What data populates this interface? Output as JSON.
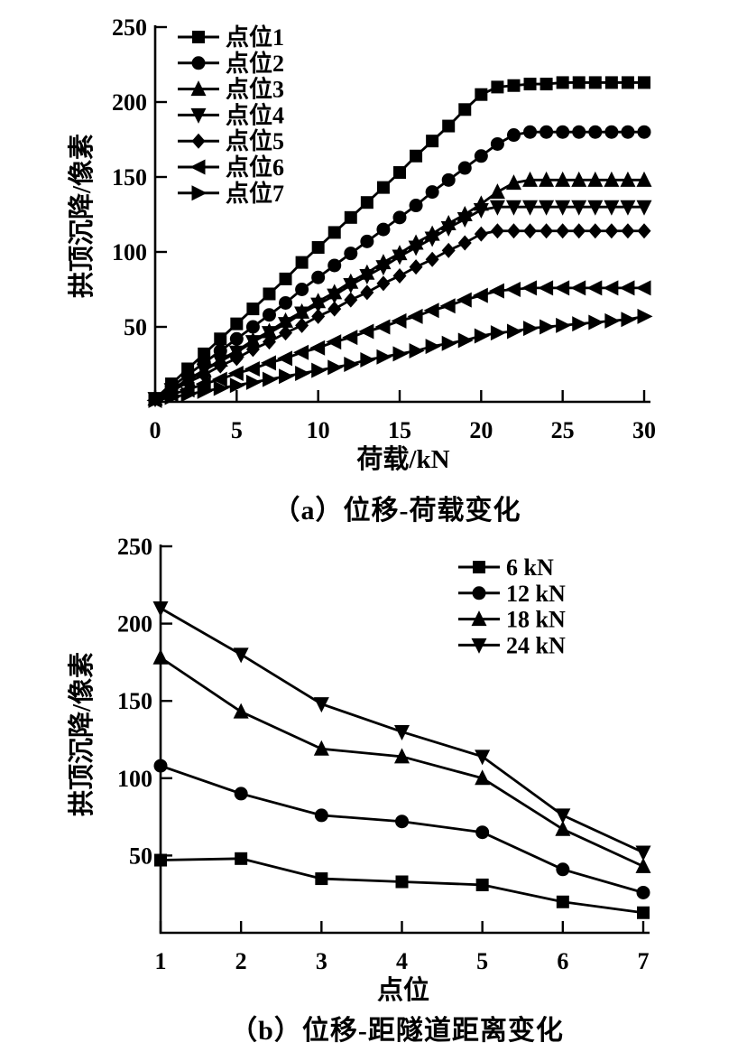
{
  "figure": {
    "background": "#ffffff",
    "ink": "#000000"
  },
  "chart_data": [
    {
      "id": "a",
      "type": "line",
      "caption": "（a）位移-荷载变化",
      "xlabel": "荷载/kN",
      "ylabel": "拱顶沉降/像素",
      "xlim": [
        0,
        30
      ],
      "ylim": [
        0,
        250
      ],
      "xticks": [
        0,
        5,
        10,
        15,
        20,
        25,
        30
      ],
      "yticks": [
        50,
        100,
        150,
        200,
        250
      ],
      "grid": false,
      "legend_position": "upper-left-inside",
      "x": [
        0,
        1,
        2,
        3,
        4,
        5,
        6,
        7,
        8,
        9,
        10,
        11,
        12,
        13,
        14,
        15,
        16,
        17,
        18,
        19,
        20,
        21,
        22,
        23,
        24,
        25,
        26,
        27,
        28,
        29,
        30
      ],
      "series": [
        {
          "name": "点位1",
          "marker": "square",
          "values": [
            2,
            12,
            22,
            32,
            42,
            52,
            62,
            72,
            82,
            93,
            103,
            113,
            123,
            133,
            143,
            153,
            164,
            174,
            184,
            195,
            205,
            210,
            211,
            212,
            212,
            213,
            213,
            213,
            213,
            213,
            213
          ]
        },
        {
          "name": "点位2",
          "marker": "circle",
          "values": [
            2,
            10,
            18,
            26,
            34,
            42,
            50,
            58,
            66,
            75,
            83,
            91,
            99,
            107,
            115,
            123,
            131,
            140,
            148,
            156,
            164,
            172,
            178,
            180,
            180,
            180,
            180,
            180,
            180,
            180,
            180
          ]
        },
        {
          "name": "点位3",
          "marker": "triangle-up",
          "values": [
            2,
            8,
            15,
            21,
            28,
            34,
            41,
            47,
            54,
            60,
            67,
            73,
            80,
            86,
            93,
            99,
            106,
            112,
            119,
            125,
            132,
            140,
            146,
            148,
            148,
            148,
            148,
            148,
            148,
            148,
            148
          ]
        },
        {
          "name": "点位4",
          "marker": "triangle-down",
          "values": [
            2,
            8,
            14,
            21,
            27,
            33,
            40,
            46,
            52,
            59,
            65,
            71,
            78,
            84,
            90,
            97,
            103,
            109,
            116,
            122,
            128,
            130,
            130,
            130,
            130,
            130,
            130,
            130,
            130,
            130,
            130
          ]
        },
        {
          "name": "点位5",
          "marker": "diamond",
          "values": [
            2,
            7,
            13,
            18,
            24,
            29,
            35,
            40,
            46,
            51,
            57,
            62,
            68,
            73,
            79,
            84,
            90,
            95,
            101,
            106,
            112,
            114,
            114,
            114,
            114,
            114,
            114,
            114,
            114,
            114,
            114
          ]
        },
        {
          "name": "点位6",
          "marker": "triangle-left",
          "values": [
            1,
            5,
            8,
            12,
            15,
            19,
            22,
            26,
            29,
            33,
            36,
            40,
            43,
            47,
            50,
            54,
            57,
            61,
            64,
            68,
            71,
            74,
            75,
            76,
            76,
            76,
            76,
            76,
            76,
            76,
            76
          ]
        },
        {
          "name": "点位7",
          "marker": "triangle-right",
          "values": [
            1,
            3,
            5,
            7,
            9,
            11,
            13,
            15,
            17,
            19,
            21,
            23,
            25,
            28,
            30,
            32,
            34,
            37,
            39,
            41,
            44,
            46,
            47,
            49,
            50,
            51,
            52,
            53,
            54,
            55,
            57
          ]
        }
      ]
    },
    {
      "id": "b",
      "type": "line",
      "caption": "（b）位移-距隧道距离变化",
      "xlabel": "点位",
      "ylabel": "拱顶沉降/像素",
      "xlim": [
        1,
        7
      ],
      "ylim": [
        0,
        250
      ],
      "xticks": [
        1,
        2,
        3,
        4,
        5,
        6,
        7
      ],
      "yticks": [
        50,
        100,
        150,
        200,
        250
      ],
      "grid": false,
      "legend_position": "upper-right-inside",
      "x": [
        1,
        2,
        3,
        4,
        5,
        6,
        7
      ],
      "series": [
        {
          "name": "6 kN",
          "marker": "square",
          "values": [
            47,
            48,
            35,
            33,
            31,
            20,
            13
          ]
        },
        {
          "name": "12 kN",
          "marker": "circle",
          "values": [
            108,
            90,
            76,
            72,
            65,
            41,
            26
          ]
        },
        {
          "name": "18 kN",
          "marker": "triangle-up",
          "values": [
            178,
            143,
            119,
            114,
            100,
            67,
            43
          ]
        },
        {
          "name": "24 kN",
          "marker": "triangle-down",
          "values": [
            210,
            180,
            148,
            130,
            114,
            76,
            52
          ]
        }
      ]
    }
  ]
}
